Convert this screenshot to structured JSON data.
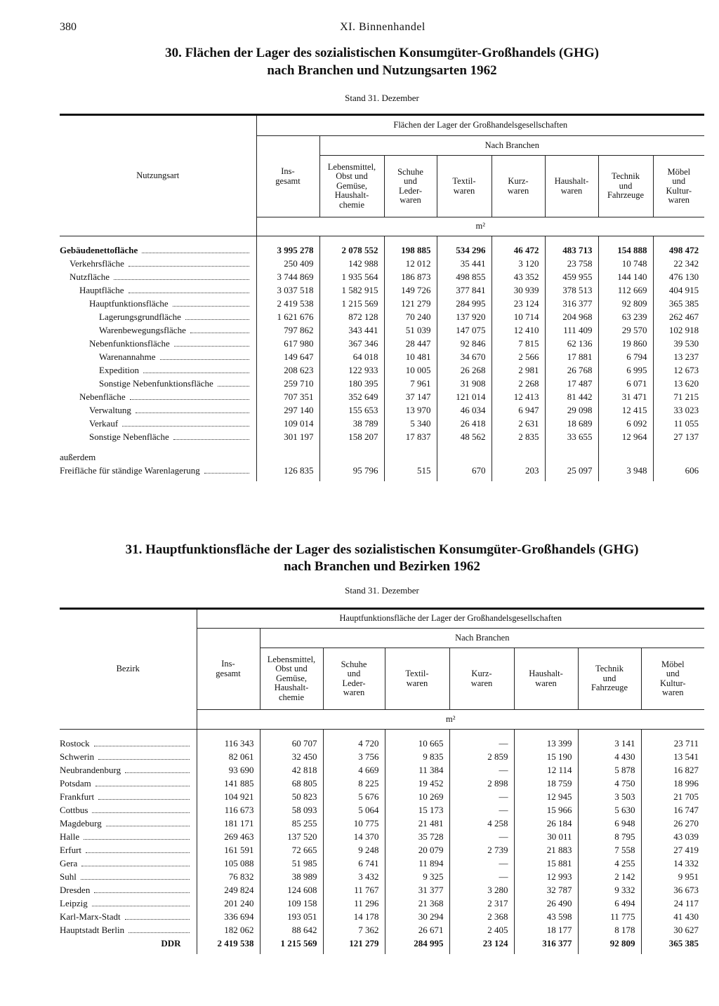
{
  "header": {
    "page": "380",
    "section": "XI. Binnenhandel"
  },
  "tables": [
    {
      "title_line1": "30. Flächen der Lager des sozialistischen Konsumgüter-Großhandels (GHG)",
      "title_line2": "nach Branchen und Nutzungsarten 1962",
      "subtitle": "Stand 31. Dezember",
      "stub_header": "Nutzungsart",
      "group_header": "Flächen der Lager der Großhandelsgesellschaften",
      "branch_header": "Nach Branchen",
      "columns": [
        "Ins-\ngesamt",
        "Lebensmittel,\nObst und\nGemüse,\nHaushalt-\nchemie",
        "Schuhe\nund\nLeder-\nwaren",
        "Textil-\nwaren",
        "Kurz-\nwaren",
        "Haushalt-\nwaren",
        "Technik\nund\nFahrzeuge",
        "Möbel\nund\nKultur-\nwaren"
      ],
      "unit": "m²",
      "rows": [
        {
          "label": "Gebäudenettofläche",
          "values": [
            "3 995 278",
            "2 078 552",
            "198 885",
            "534 296",
            "46 472",
            "483 713",
            "154 888",
            "498 472"
          ]
        },
        {
          "label": "Verkehrsfläche",
          "values": [
            "250 409",
            "142 988",
            "12 012",
            "35 441",
            "3 120",
            "23 758",
            "10 748",
            "22 342"
          ]
        },
        {
          "label": "Nutzfläche",
          "values": [
            "3 744 869",
            "1 935 564",
            "186 873",
            "498 855",
            "43 352",
            "459 955",
            "144 140",
            "476 130"
          ]
        },
        {
          "label": "Hauptfläche",
          "values": [
            "3 037 518",
            "1 582 915",
            "149 726",
            "377 841",
            "30 939",
            "378 513",
            "112 669",
            "404 915"
          ]
        },
        {
          "label": "Hauptfunktionsfläche",
          "values": [
            "2 419 538",
            "1 215 569",
            "121 279",
            "284 995",
            "23 124",
            "316 377",
            "92 809",
            "365 385"
          ]
        },
        {
          "label": "Lagerungsgrundfläche",
          "values": [
            "1 621 676",
            "872 128",
            "70 240",
            "137 920",
            "10 714",
            "204 968",
            "63 239",
            "262 467"
          ]
        },
        {
          "label": "Warenbewegungsfläche",
          "values": [
            "797 862",
            "343 441",
            "51 039",
            "147 075",
            "12 410",
            "111 409",
            "29 570",
            "102 918"
          ]
        },
        {
          "label": "Nebenfunktionsfläche",
          "values": [
            "617 980",
            "367 346",
            "28 447",
            "92 846",
            "7 815",
            "62 136",
            "19 860",
            "39 530"
          ]
        },
        {
          "label": "Warenannahme",
          "values": [
            "149 647",
            "64 018",
            "10 481",
            "34 670",
            "2 566",
            "17 881",
            "6 794",
            "13 237"
          ]
        },
        {
          "label": "Expedition",
          "values": [
            "208 623",
            "122 933",
            "10 005",
            "26 268",
            "2 981",
            "26 768",
            "6 995",
            "12 673"
          ]
        },
        {
          "label": "Sonstige Nebenfunktionsfläche",
          "values": [
            "259 710",
            "180 395",
            "7 961",
            "31 908",
            "2 268",
            "17 487",
            "6 071",
            "13 620"
          ]
        },
        {
          "label": "Nebenfläche",
          "values": [
            "707 351",
            "352 649",
            "37 147",
            "121 014",
            "12 413",
            "81 442",
            "31 471",
            "71 215"
          ]
        },
        {
          "label": "Verwaltung",
          "values": [
            "297 140",
            "155 653",
            "13 970",
            "46 034",
            "6 947",
            "29 098",
            "12 415",
            "33 023"
          ]
        },
        {
          "label": "Verkauf",
          "values": [
            "109 014",
            "38 789",
            "5 340",
            "26 418",
            "2 631",
            "18 689",
            "6 092",
            "11 055"
          ]
        },
        {
          "label": "Sonstige Nebenfläche",
          "values": [
            "301 197",
            "158 207",
            "17 837",
            "48 562",
            "2 835",
            "33 655",
            "12 964",
            "27 137"
          ]
        },
        {
          "label": "außerdem"
        },
        {
          "label": "Freifläche für ständige Warenlagerung",
          "values": [
            "126 835",
            "95 796",
            "515",
            "670",
            "203",
            "25 097",
            "3 948",
            "606"
          ]
        }
      ]
    },
    {
      "title_line1": "31. Hauptfunktionsfläche der Lager des sozialistischen Konsumgüter-Großhandels (GHG)",
      "title_line2": "nach Branchen und Bezirken 1962",
      "subtitle": "Stand 31. Dezember",
      "stub_header": "Bezirk",
      "group_header": "Hauptfunktionsfläche der Lager der Großhandelsgesellschaften",
      "branch_header": "Nach Branchen",
      "columns": [
        "Ins-\ngesamt",
        "Lebensmittel,\nObst und\nGemüse,\nHaushalt-\nchemie",
        "Schuhe\nund\nLeder-\nwaren",
        "Textil-\nwaren",
        "Kurz-\nwaren",
        "Haushalt-\nwaren",
        "Technik\nund\nFahrzeuge",
        "Möbel\nund\nKultur-\nwaren"
      ],
      "unit": "m²",
      "rows": [
        {
          "label": "Rostock",
          "values": [
            "116 343",
            "60 707",
            "4 720",
            "10 665",
            "—",
            "13 399",
            "3 141",
            "23 711"
          ]
        },
        {
          "label": "Schwerin",
          "values": [
            "82 061",
            "32 450",
            "3 756",
            "9 835",
            "2 859",
            "15 190",
            "4 430",
            "13 541"
          ]
        },
        {
          "label": "Neubrandenburg",
          "values": [
            "93 690",
            "42 818",
            "4 669",
            "11 384",
            "—",
            "12 114",
            "5 878",
            "16 827"
          ]
        },
        {
          "label": "Potsdam",
          "values": [
            "141 885",
            "68 805",
            "8 225",
            "19 452",
            "2 898",
            "18 759",
            "4 750",
            "18 996"
          ]
        },
        {
          "label": "Frankfurt",
          "values": [
            "104 921",
            "50 823",
            "5 676",
            "10 269",
            "—",
            "12 945",
            "3 503",
            "21 705"
          ]
        },
        {
          "label": "Cottbus",
          "values": [
            "116 673",
            "58 093",
            "5 064",
            "15 173",
            "—",
            "15 966",
            "5 630",
            "16 747"
          ]
        },
        {
          "label": "Magdeburg",
          "values": [
            "181 171",
            "85 255",
            "10 775",
            "21 481",
            "4 258",
            "26 184",
            "6 948",
            "26 270"
          ]
        },
        {
          "label": "Halle",
          "values": [
            "269 463",
            "137 520",
            "14 370",
            "35 728",
            "—",
            "30 011",
            "8 795",
            "43 039"
          ]
        },
        {
          "label": "Erfurt",
          "values": [
            "161 591",
            "72 665",
            "9 248",
            "20 079",
            "2 739",
            "21 883",
            "7 558",
            "27 419"
          ]
        },
        {
          "label": "Gera",
          "values": [
            "105 088",
            "51 985",
            "6 741",
            "11 894",
            "—",
            "15 881",
            "4 255",
            "14 332"
          ]
        },
        {
          "label": "Suhl",
          "values": [
            "76 832",
            "38 989",
            "3 432",
            "9 325",
            "—",
            "12 993",
            "2 142",
            "9 951"
          ]
        },
        {
          "label": "Dresden",
          "values": [
            "249 824",
            "124 608",
            "11 767",
            "31 377",
            "3 280",
            "32 787",
            "9 332",
            "36 673"
          ]
        },
        {
          "label": "Leipzig",
          "values": [
            "201 240",
            "109 158",
            "11 296",
            "21 368",
            "2 317",
            "26 490",
            "6 494",
            "24 117"
          ]
        },
        {
          "label": "Karl-Marx-Stadt",
          "values": [
            "336 694",
            "193 051",
            "14 178",
            "30 294",
            "2 368",
            "43 598",
            "11 775",
            "41 430"
          ]
        },
        {
          "label": "Hauptstadt Berlin",
          "values": [
            "182 062",
            "88 642",
            "7 362",
            "26 671",
            "2 405",
            "18 177",
            "8 178",
            "30 627"
          ]
        },
        {
          "label": "DDR",
          "values": [
            "2 419 538",
            "1 215 569",
            "121 279",
            "284 995",
            "23 124",
            "316 377",
            "92 809",
            "365 385"
          ]
        }
      ]
    }
  ]
}
